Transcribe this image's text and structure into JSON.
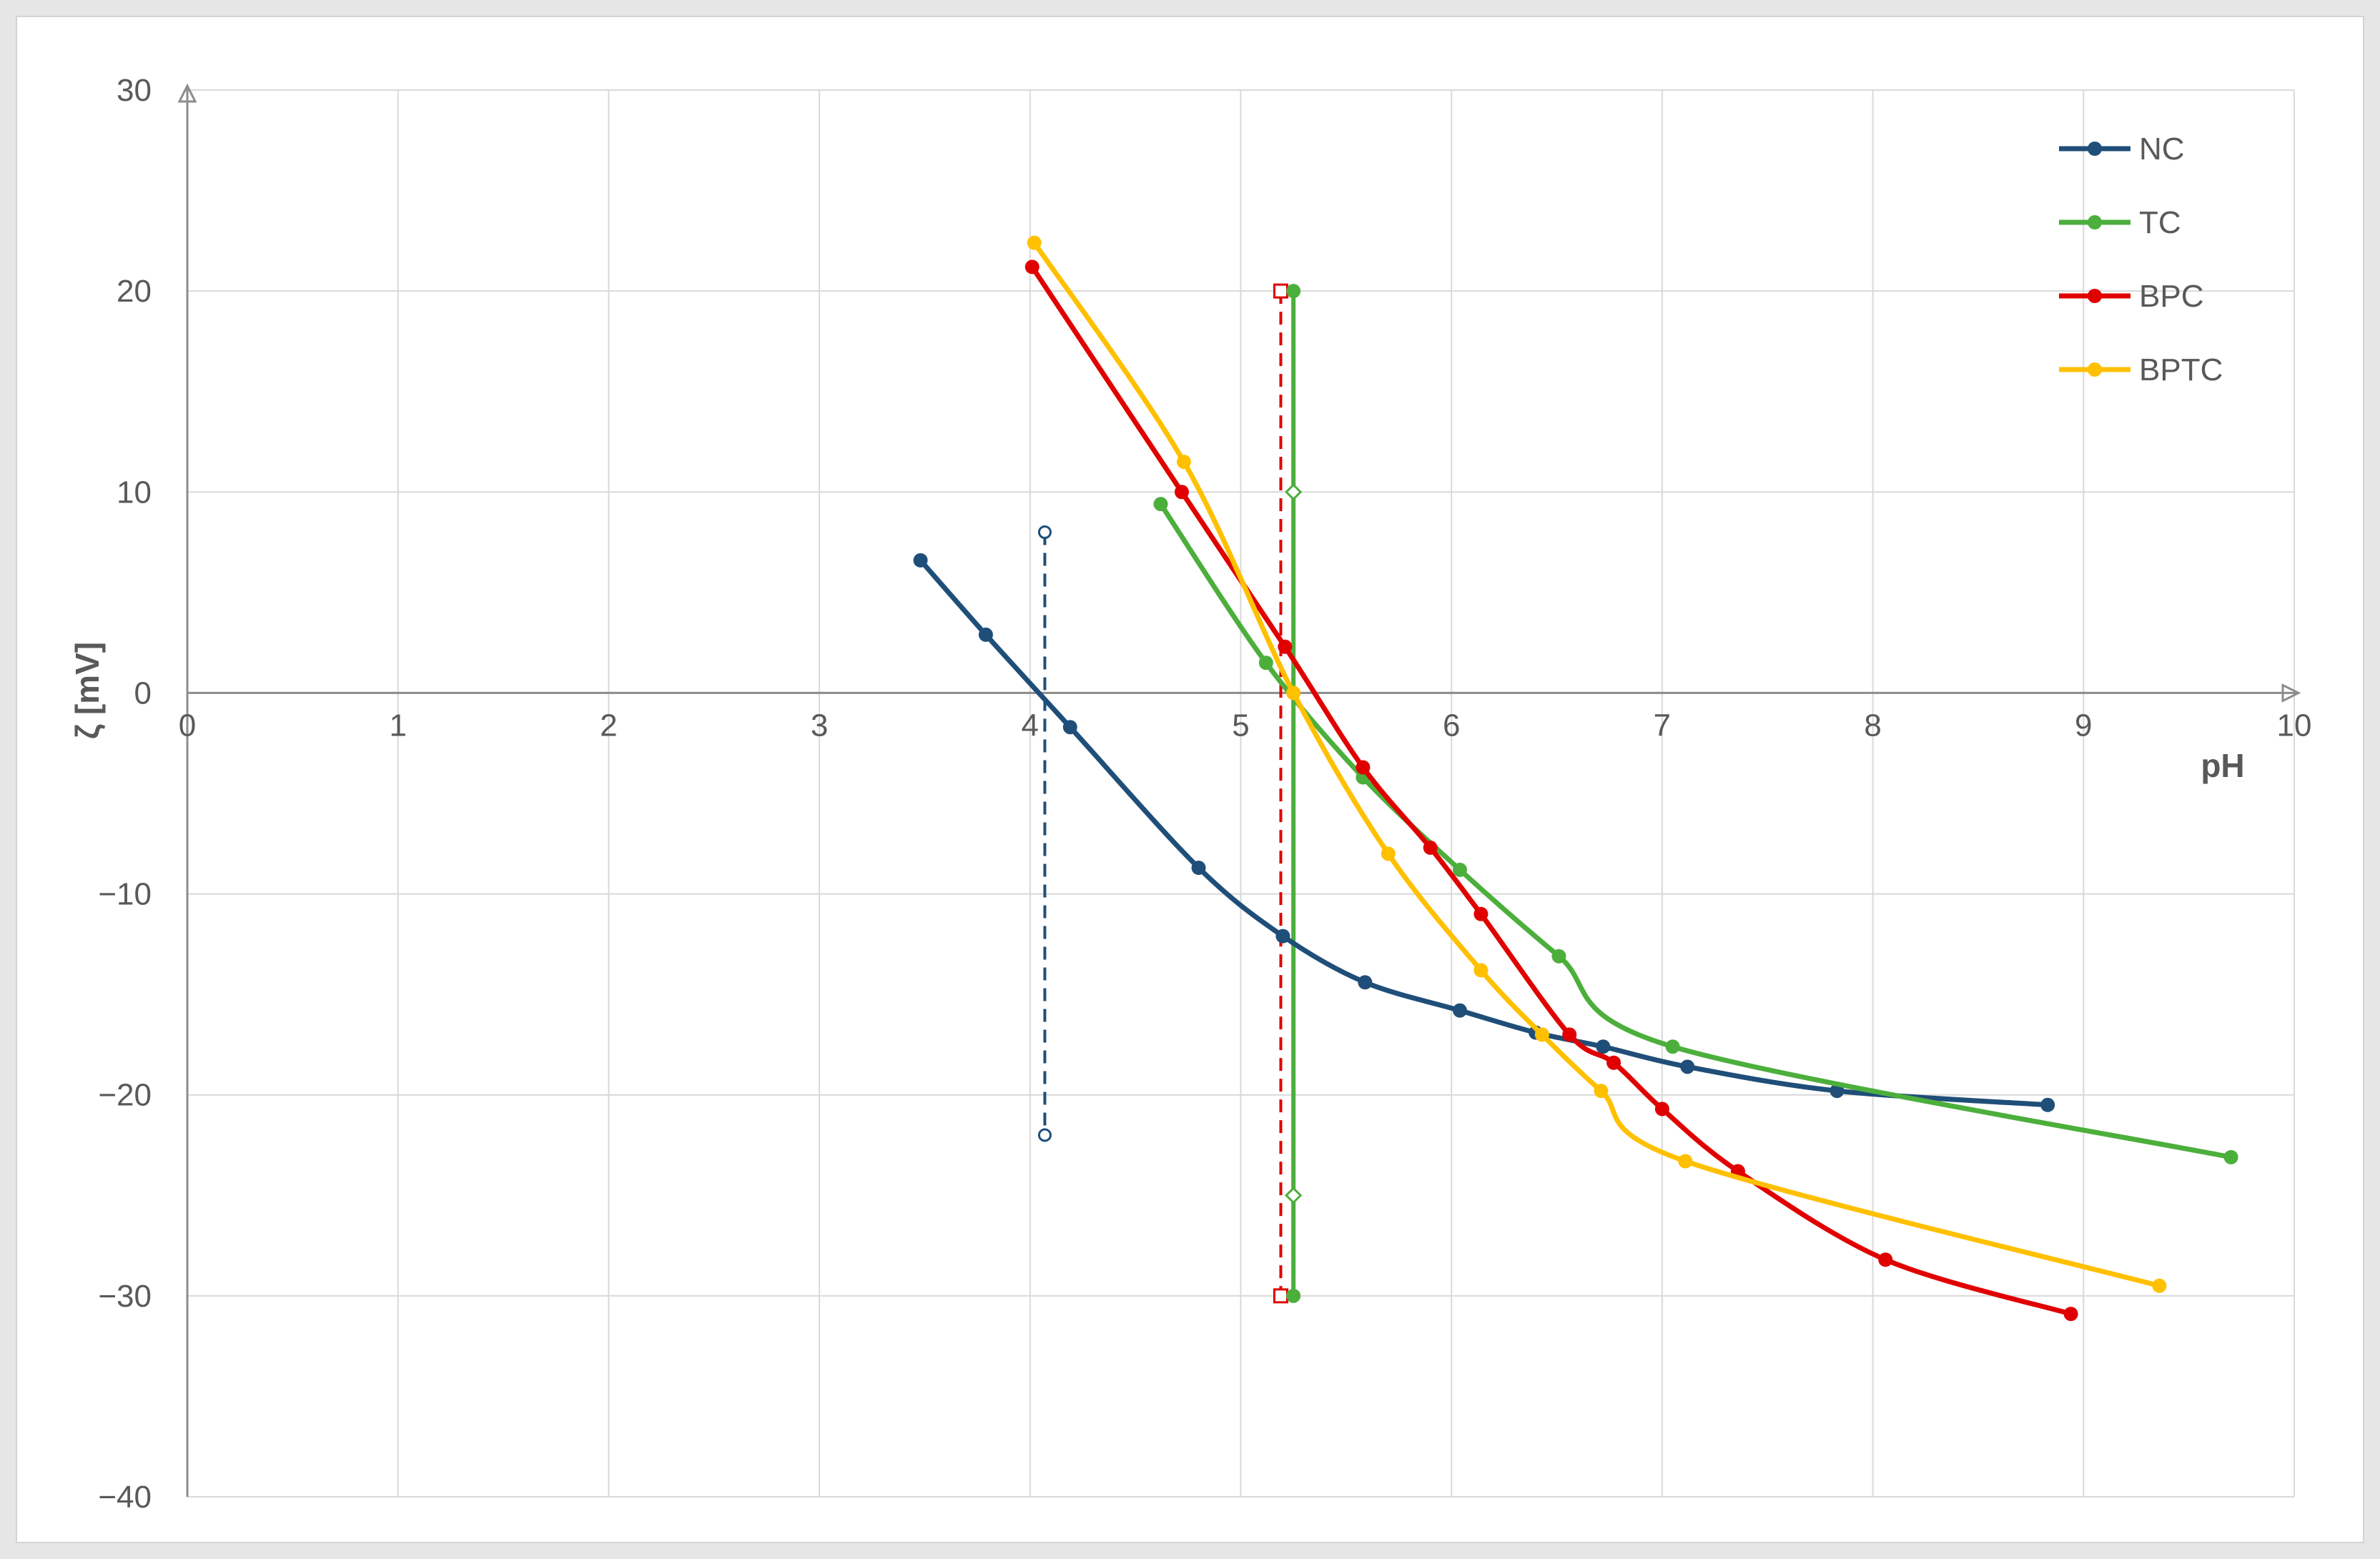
{
  "chart_data": {
    "type": "line",
    "title": "",
    "xlabel": "pH",
    "ylabel": "ζ [mV]",
    "xlim": [
      0,
      10
    ],
    "ylim": [
      -40,
      30
    ],
    "x_ticks": [
      "0",
      "1",
      "2",
      "3",
      "4",
      "5",
      "6",
      "7",
      "8",
      "9",
      "10"
    ],
    "y_ticks": [
      "30",
      "20",
      "10",
      "0",
      "−10",
      "−20",
      "−30",
      "−40"
    ],
    "grid": true,
    "legend_position": "top-right",
    "series": [
      {
        "name": "NC",
        "color": "#1f4e79",
        "points": [
          [
            3.48,
            6.6
          ],
          [
            3.79,
            2.9
          ],
          [
            4.19,
            -1.7
          ],
          [
            4.8,
            -8.7
          ],
          [
            5.2,
            -12.1
          ],
          [
            5.59,
            -14.4
          ],
          [
            6.04,
            -15.8
          ],
          [
            6.4,
            -16.9
          ],
          [
            6.72,
            -17.6
          ],
          [
            7.12,
            -18.6
          ],
          [
            7.83,
            -19.8
          ],
          [
            8.83,
            -20.5
          ]
        ]
      },
      {
        "name": "TC",
        "color": "#4caf3c",
        "points": [
          [
            4.62,
            9.4
          ],
          [
            5.12,
            1.5
          ],
          [
            5.58,
            -4.2
          ],
          [
            6.04,
            -8.8
          ],
          [
            6.51,
            -13.1
          ],
          [
            7.05,
            -17.6
          ],
          [
            9.7,
            -23.1
          ]
        ]
      },
      {
        "name": "BPC",
        "color": "#e00000",
        "points": [
          [
            4.01,
            21.2
          ],
          [
            4.72,
            10.0
          ],
          [
            5.21,
            2.3
          ],
          [
            5.58,
            -3.7
          ],
          [
            5.9,
            -7.7
          ],
          [
            6.14,
            -11.0
          ],
          [
            6.56,
            -17.0
          ],
          [
            6.77,
            -18.4
          ],
          [
            7.0,
            -20.7
          ],
          [
            7.36,
            -23.8
          ],
          [
            8.06,
            -28.2
          ],
          [
            8.94,
            -30.9
          ]
        ]
      },
      {
        "name": "BPTC",
        "color": "#ffc000",
        "points": [
          [
            4.02,
            22.4
          ],
          [
            4.73,
            11.5
          ],
          [
            5.25,
            0.0
          ],
          [
            5.7,
            -8.0
          ],
          [
            6.14,
            -13.8
          ],
          [
            6.43,
            -17.0
          ],
          [
            6.71,
            -19.8
          ],
          [
            7.11,
            -23.3
          ],
          [
            9.36,
            -29.5
          ]
        ]
      }
    ],
    "reference_lines": [
      {
        "color": "#1f4e79",
        "dashed": true,
        "x": 4.07,
        "y": [
          8.0,
          -22.0
        ],
        "marker": "circle-open"
      },
      {
        "color": "#e00000",
        "dashed": true,
        "x": 5.19,
        "y": [
          20.0,
          -30.0
        ],
        "marker": "square-open"
      },
      {
        "color": "#ffc000",
        "dashed": true,
        "x": 5.25,
        "y": [
          20.0,
          -30.0
        ],
        "marker": "none"
      },
      {
        "color": "#4caf3c",
        "dashed": false,
        "x": 5.25,
        "y": [
          20.0,
          -30.0
        ],
        "marker": "dot"
      },
      {
        "color": "#4caf3c",
        "dashed": true,
        "x": 5.25,
        "y": [
          10.0,
          -25.0
        ],
        "marker": "diamond-open"
      }
    ]
  }
}
